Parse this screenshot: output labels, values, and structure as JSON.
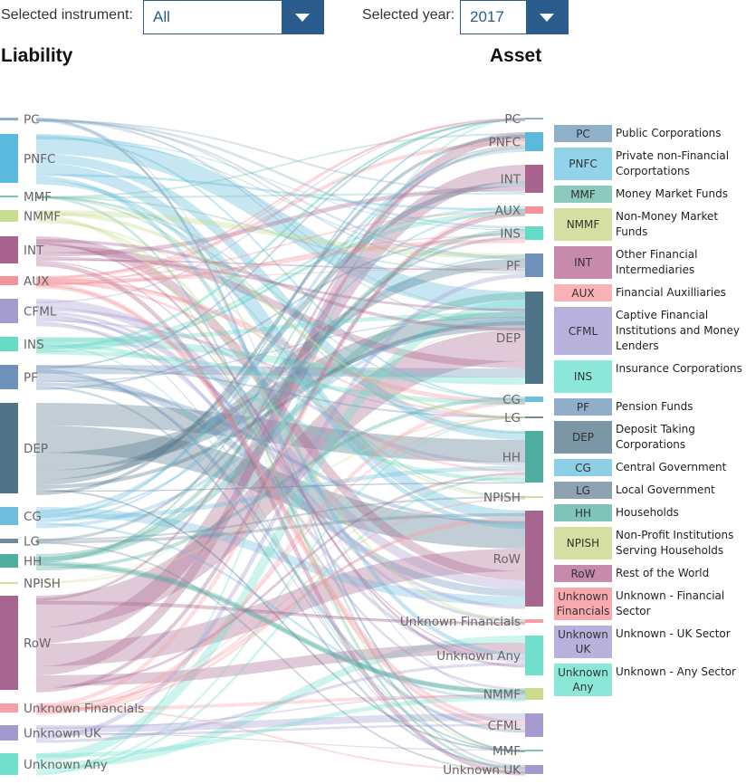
{
  "controls": {
    "instrument_label": "Selected instrument:",
    "instrument_value": "All",
    "year_label": "Selected year:",
    "year_value": "2017"
  },
  "headings": {
    "liability": "Liability",
    "asset": "Asset"
  },
  "liability_nodes": [
    {
      "code": "PC",
      "label": "PC",
      "color": "#8fb0c9"
    },
    {
      "code": "PNFC",
      "label": "PNFC",
      "color": "#5bbadb"
    },
    {
      "code": "MMF",
      "label": "MMF",
      "color": "#7cc4b4"
    },
    {
      "code": "NMMF",
      "label": "NMMF",
      "color": "#c7dc8d"
    },
    {
      "code": "INT",
      "label": "INT",
      "color": "#a8638f"
    },
    {
      "code": "AUX",
      "label": "AUX",
      "color": "#f4939a"
    },
    {
      "code": "CFML",
      "label": "CFML",
      "color": "#a59bcf"
    },
    {
      "code": "INS",
      "label": "INS",
      "color": "#64dbc4"
    },
    {
      "code": "PF",
      "label": "PF",
      "color": "#6d91b8"
    },
    {
      "code": "DEP",
      "label": "DEP",
      "color": "#4f7387"
    },
    {
      "code": "CG",
      "label": "CG",
      "color": "#6dbddd"
    },
    {
      "code": "LG",
      "label": "LG",
      "color": "#6f8a9c"
    },
    {
      "code": "HH",
      "label": "HH",
      "color": "#4fada0"
    },
    {
      "code": "NPISH",
      "label": "NPISH",
      "color": "#d3e0a1"
    },
    {
      "code": "RoW",
      "label": "RoW",
      "color": "#a6668f"
    },
    {
      "code": "UF",
      "label": "Unknown Financials",
      "color": "#f5a0a6"
    },
    {
      "code": "UK",
      "label": "Unknown UK",
      "color": "#a19ad0"
    },
    {
      "code": "UA",
      "label": "Unknown Any",
      "color": "#70e0cc"
    }
  ],
  "asset_nodes": [
    {
      "code": "PC",
      "label": "PC",
      "color": "#8fb0c9"
    },
    {
      "code": "PNFC",
      "label": "PNFC",
      "color": "#5bbadb"
    },
    {
      "code": "INT",
      "label": "INT",
      "color": "#a8638f"
    },
    {
      "code": "AUX",
      "label": "AUX",
      "color": "#f4939a"
    },
    {
      "code": "INS",
      "label": "INS",
      "color": "#64dbc4"
    },
    {
      "code": "PF",
      "label": "PF",
      "color": "#6d91b8"
    },
    {
      "code": "DEP",
      "label": "DEP",
      "color": "#4f7387"
    },
    {
      "code": "CG",
      "label": "CG",
      "color": "#6dbddd"
    },
    {
      "code": "LG",
      "label": "LG",
      "color": "#6f8a9c"
    },
    {
      "code": "HH",
      "label": "HH",
      "color": "#4fada0"
    },
    {
      "code": "NPISH",
      "label": "NPISH",
      "color": "#d3e0a1"
    },
    {
      "code": "RoW",
      "label": "RoW",
      "color": "#a6668f"
    },
    {
      "code": "UF",
      "label": "Unknown Financials",
      "color": "#f5a0a6"
    },
    {
      "code": "UA",
      "label": "Unknown Any",
      "color": "#70e0cc"
    },
    {
      "code": "NMMF",
      "label": "NMMF",
      "color": "#c7dc8d"
    },
    {
      "code": "CFML",
      "label": "CFML",
      "color": "#a59bcf"
    },
    {
      "code": "MMF",
      "label": "MMF",
      "color": "#7cc4b4"
    },
    {
      "code": "UK",
      "label": "Unknown UK",
      "color": "#a19ad0"
    }
  ],
  "legend": [
    {
      "abbr": "PC",
      "name": "Public Corporations",
      "color": "#8fb0c9",
      "lines": 1
    },
    {
      "abbr": "PNFC",
      "name": "Private non-Financial Corportations",
      "color": "#93d3ea",
      "lines": 2
    },
    {
      "abbr": "MMF",
      "name": "Money Market Funds",
      "color": "#8ac9bb",
      "lines": 1
    },
    {
      "abbr": "NMMF",
      "name": "Non-Money Market Funds",
      "color": "#d3e0a1",
      "lines": 2
    },
    {
      "abbr": "INT",
      "name": "Other Financial Intermediaries",
      "color": "#c58aac",
      "lines": 2
    },
    {
      "abbr": "AUX",
      "name": "Financial Auxilliaries",
      "color": "#f7b2b6",
      "lines": 1
    },
    {
      "abbr": "CFML",
      "name": "Captive Financial Institutions and Money Lenders",
      "color": "#b7b1dc",
      "lines": 3
    },
    {
      "abbr": "INS",
      "name": "Insurance Corporations",
      "color": "#8be7d7",
      "lines": 2
    },
    {
      "abbr": "PF",
      "name": "Pension Funds",
      "color": "#90adc9",
      "lines": 1
    },
    {
      "abbr": "DEP",
      "name": "Deposit Taking Corporations",
      "color": "#7b96a4",
      "lines": 2
    },
    {
      "abbr": "CG",
      "name": "Central Government",
      "color": "#8ccfe6",
      "lines": 1
    },
    {
      "abbr": "LG",
      "name": "Local Government",
      "color": "#8ea3b1",
      "lines": 1
    },
    {
      "abbr": "HH",
      "name": "Households",
      "color": "#7ec4ba",
      "lines": 1
    },
    {
      "abbr": "NPISH",
      "name": "Non-Profit Institutions Serving Households",
      "color": "#d3e0a1",
      "lines": 2
    },
    {
      "abbr": "RoW",
      "name": "Rest of the World",
      "color": "#c58aac",
      "lines": 1
    },
    {
      "abbr": "Unknown Financials",
      "name": "Unknown - Financial Sector",
      "color": "#f7a9ad",
      "lines": 2
    },
    {
      "abbr": "Unknown UK",
      "name": "Unknown - UK Sector",
      "color": "#b7b1dc",
      "lines": 2
    },
    {
      "abbr": "Unknown Any",
      "name": "Unknown - Any Sector",
      "color": "#8be7d7",
      "lines": 2
    }
  ]
}
